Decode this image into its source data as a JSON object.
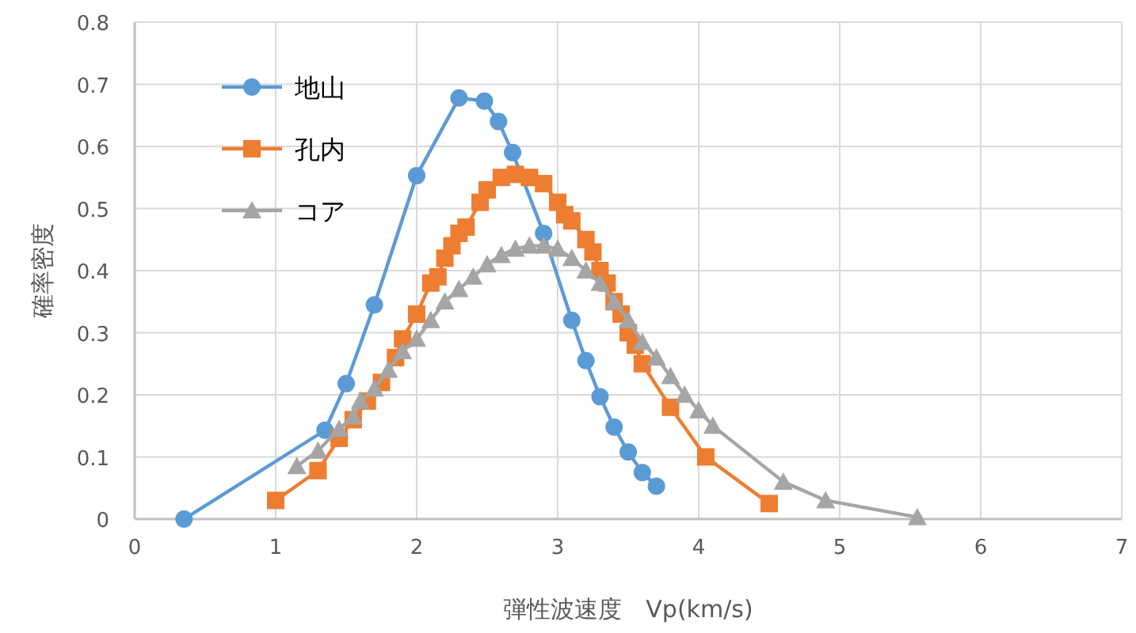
{
  "chart_data": {
    "type": "line",
    "xlabel": "弾性波速度　Vp(km/s)",
    "ylabel": "確率密度",
    "xlim": [
      0,
      7
    ],
    "ylim": [
      0,
      0.8
    ],
    "xticks": [
      0,
      1,
      2,
      3,
      4,
      5,
      6,
      7
    ],
    "yticks": [
      {
        "value": 0,
        "label": "0"
      },
      {
        "value": 0.1,
        "label": "0.1"
      },
      {
        "value": 0.2,
        "label": "0.2"
      },
      {
        "value": 0.3,
        "label": "0.3"
      },
      {
        "value": 0.4,
        "label": "0.4"
      },
      {
        "value": 0.5,
        "label": "0.5"
      },
      {
        "value": 0.6,
        "label": "0.6"
      },
      {
        "value": 0.7,
        "label": "0.7"
      },
      {
        "value": 0.8,
        "label": "0.8"
      }
    ],
    "grid": true,
    "legend": "top left",
    "line_style": "solid",
    "series": [
      {
        "name": "地山",
        "color": "#5b9bd5",
        "marker": "circle",
        "x": [
          0.35,
          1.35,
          1.5,
          1.7,
          2.0,
          2.3,
          2.48,
          2.58,
          2.68,
          2.9,
          3.1,
          3.2,
          3.3,
          3.4,
          3.5,
          3.6,
          3.7
        ],
        "values": [
          0.0,
          0.143,
          0.218,
          0.345,
          0.553,
          0.678,
          0.673,
          0.64,
          0.59,
          0.46,
          0.32,
          0.255,
          0.197,
          0.148,
          0.108,
          0.075,
          0.053
        ]
      },
      {
        "name": "孔内",
        "color": "#ed7d31",
        "marker": "square",
        "x": [
          1.0,
          1.3,
          1.45,
          1.55,
          1.65,
          1.75,
          1.85,
          1.9,
          2.0,
          2.1,
          2.15,
          2.2,
          2.25,
          2.3,
          2.35,
          2.45,
          2.5,
          2.6,
          2.7,
          2.8,
          2.9,
          3.0,
          3.05,
          3.1,
          3.2,
          3.25,
          3.3,
          3.35,
          3.4,
          3.45,
          3.5,
          3.55,
          3.6,
          3.8,
          4.05,
          4.5
        ],
        "values": [
          0.03,
          0.078,
          0.13,
          0.16,
          0.19,
          0.22,
          0.26,
          0.29,
          0.33,
          0.38,
          0.39,
          0.42,
          0.44,
          0.46,
          0.47,
          0.51,
          0.53,
          0.55,
          0.555,
          0.55,
          0.54,
          0.51,
          0.49,
          0.48,
          0.45,
          0.43,
          0.4,
          0.38,
          0.35,
          0.33,
          0.3,
          0.28,
          0.25,
          0.18,
          0.1,
          0.025
        ]
      },
      {
        "name": "コア",
        "color": "#a5a5a5",
        "marker": "triangle",
        "x": [
          1.15,
          1.3,
          1.45,
          1.55,
          1.6,
          1.7,
          1.8,
          1.9,
          2.0,
          2.1,
          2.2,
          2.3,
          2.4,
          2.5,
          2.6,
          2.7,
          2.8,
          2.9,
          3.0,
          3.1,
          3.2,
          3.3,
          3.4,
          3.5,
          3.6,
          3.7,
          3.8,
          3.9,
          4.0,
          4.1,
          4.6,
          4.9,
          5.55
        ],
        "values": [
          0.085,
          0.11,
          0.145,
          0.165,
          0.19,
          0.21,
          0.24,
          0.27,
          0.29,
          0.32,
          0.35,
          0.37,
          0.39,
          0.41,
          0.425,
          0.435,
          0.44,
          0.44,
          0.435,
          0.42,
          0.4,
          0.38,
          0.35,
          0.32,
          0.285,
          0.26,
          0.23,
          0.2,
          0.175,
          0.15,
          0.06,
          0.03,
          0.003
        ]
      }
    ]
  }
}
